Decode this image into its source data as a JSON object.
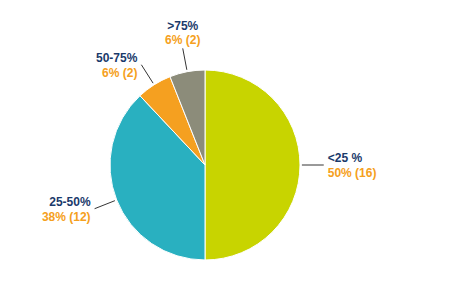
{
  "chart_data": {
    "type": "pie",
    "categories": [
      "<25 %",
      "25-50%",
      "50-75%",
      ">75%"
    ],
    "values": [
      50,
      38,
      6,
      6
    ],
    "value_labels": [
      "50% (16)",
      "38% (12)",
      "6% (2)",
      "6% (2)"
    ],
    "colors": [
      "#c8d400",
      "#29b0c0",
      "#f5a020",
      "#8c8c7a"
    ],
    "data_labels": true
  }
}
